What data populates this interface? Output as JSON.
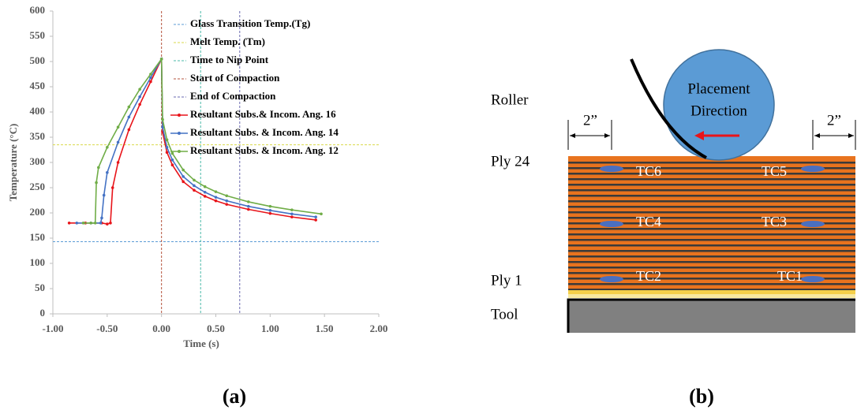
{
  "chart_data": {
    "type": "line",
    "xlabel": "Time (s)",
    "ylabel": "Temperature  (°C)",
    "xlim": [
      -1,
      2
    ],
    "ylim": [
      0,
      600
    ],
    "xticks": [
      {
        "value": -1,
        "label": "-1.00"
      },
      {
        "value": -0.5,
        "label": "-0.50"
      },
      {
        "value": 0,
        "label": "0.00"
      },
      {
        "value": 0.5,
        "label": "0.50"
      },
      {
        "value": 1,
        "label": "1.00"
      },
      {
        "value": 1.5,
        "label": "1.50"
      },
      {
        "value": 2,
        "label": "2.00"
      }
    ],
    "yticks": [
      0,
      50,
      100,
      150,
      200,
      250,
      300,
      350,
      400,
      450,
      500,
      550,
      600
    ],
    "reference_lines": [
      {
        "name": "Glass Transition Temp.(Tg)",
        "color": "#5b9bd5",
        "axis": "y",
        "value": 143
      },
      {
        "name": "Melt Temp. (Tm)",
        "color": "#d9d94a",
        "axis": "y",
        "value": 335
      },
      {
        "name": "Time to Nip Point",
        "color": "#4ab8a8",
        "axis": "x",
        "value": 0.36
      },
      {
        "name": "Start of Compaction",
        "color": "#b5533c",
        "axis": "x",
        "value": 0
      },
      {
        "name": "End of Compaction",
        "color": "#6a6ab0",
        "axis": "x",
        "value": 0.72
      }
    ],
    "series": [
      {
        "name": "Resultant Subs.& Incom. Ang. 16",
        "color": "#e8141a",
        "x": [
          -0.85,
          -0.7,
          -0.55,
          -0.5,
          -0.47,
          -0.45,
          -0.4,
          -0.3,
          -0.2,
          -0.1,
          0,
          0.01,
          0.05,
          0.1,
          0.2,
          0.3,
          0.4,
          0.5,
          0.6,
          0.8,
          1.0,
          1.2,
          1.42
        ],
        "values": [
          180,
          180,
          180,
          178,
          180,
          250,
          300,
          365,
          415,
          460,
          505,
          360,
          320,
          295,
          262,
          245,
          233,
          224,
          217,
          207,
          199,
          192,
          186
        ]
      },
      {
        "name": "Resultant Subs. & Incom. Ang. 14",
        "color": "#4472c4",
        "x": [
          -0.78,
          -0.65,
          -0.56,
          -0.55,
          -0.53,
          -0.5,
          -0.4,
          -0.3,
          -0.2,
          -0.1,
          0,
          0.01,
          0.05,
          0.1,
          0.2,
          0.3,
          0.4,
          0.5,
          0.6,
          0.8,
          1.0,
          1.2,
          1.42
        ],
        "values": [
          180,
          180,
          180,
          190,
          235,
          280,
          340,
          390,
          430,
          468,
          505,
          370,
          330,
          305,
          272,
          254,
          241,
          231,
          224,
          213,
          205,
          198,
          192
        ]
      },
      {
        "name": "Resultant Subs. & Incom. Ang. 12",
        "color": "#70ad47",
        "x": [
          -0.72,
          -0.65,
          -0.61,
          -0.6,
          -0.58,
          -0.5,
          -0.4,
          -0.3,
          -0.2,
          -0.1,
          0,
          0.01,
          0.05,
          0.1,
          0.2,
          0.3,
          0.4,
          0.5,
          0.6,
          0.8,
          1.0,
          1.2,
          1.47
        ],
        "values": [
          180,
          180,
          180,
          260,
          290,
          330,
          370,
          410,
          445,
          475,
          505,
          385,
          345,
          318,
          285,
          265,
          252,
          242,
          234,
          222,
          213,
          206,
          198
        ]
      }
    ]
  },
  "diagram": {
    "roller": "Roller",
    "ply_top": "Ply 24",
    "ply_bottom": "Ply 1",
    "tool": "Tool",
    "edge_left": "2”",
    "edge_right": "2”",
    "direction": [
      "Placement",
      "Direction"
    ],
    "thermocouples": [
      "TC1",
      "TC2",
      "TC3",
      "TC4",
      "TC5",
      "TC6"
    ]
  },
  "captions": [
    "(a)",
    "(b)"
  ]
}
